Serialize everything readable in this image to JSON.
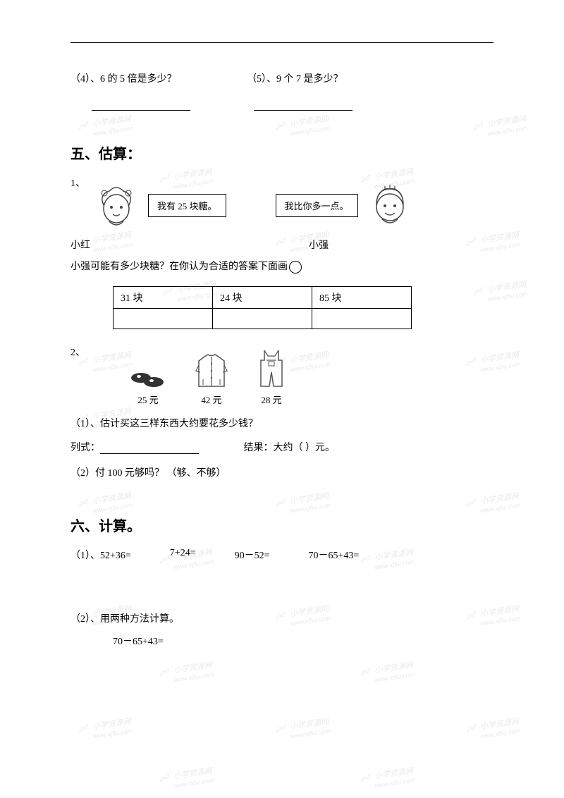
{
  "top": {
    "q4": "（4）、6 的 5 倍是多少？",
    "q5": "（5）、9 个 7 是多少？"
  },
  "section5": {
    "title": "五、估算：",
    "q1_label": "1、",
    "girl_speech": "我有 25 块糖。",
    "boy_speech": "我比你多一点。",
    "girl_name": "小红",
    "boy_name": "小强",
    "q1_question": "小强可能有多少块糖？在你认为合适的答案下面画",
    "options": [
      "31 块",
      "24 块",
      "85 块"
    ],
    "q2_label": "2、",
    "items": [
      {
        "name": "shoes",
        "price": "25 元"
      },
      {
        "name": "jacket",
        "price": "42 元"
      },
      {
        "name": "overalls",
        "price": "28 元"
      }
    ],
    "q2_1": "（1）、估计买这三样东西大约要花多少钱？",
    "q2_formula_label": "列式：",
    "q2_result_label": "结果：大约（    ）元。",
    "q2_2": "（2）付 100 元够吗？   （够、不够）"
  },
  "section6": {
    "title": "六、计算。",
    "q1_label": "（1）、",
    "calcs": [
      "52+36=",
      "7+24=",
      "90－52=",
      "70－65+43="
    ],
    "q2_label": "（2）、用两种方法计算。",
    "q2_expr": "70－65+43="
  },
  "watermark": {
    "text": "小学资源网",
    "url": "www.xj5u.com"
  },
  "colors": {
    "text": "#000000",
    "background": "#ffffff",
    "watermark": "#888888",
    "border": "#000000"
  }
}
